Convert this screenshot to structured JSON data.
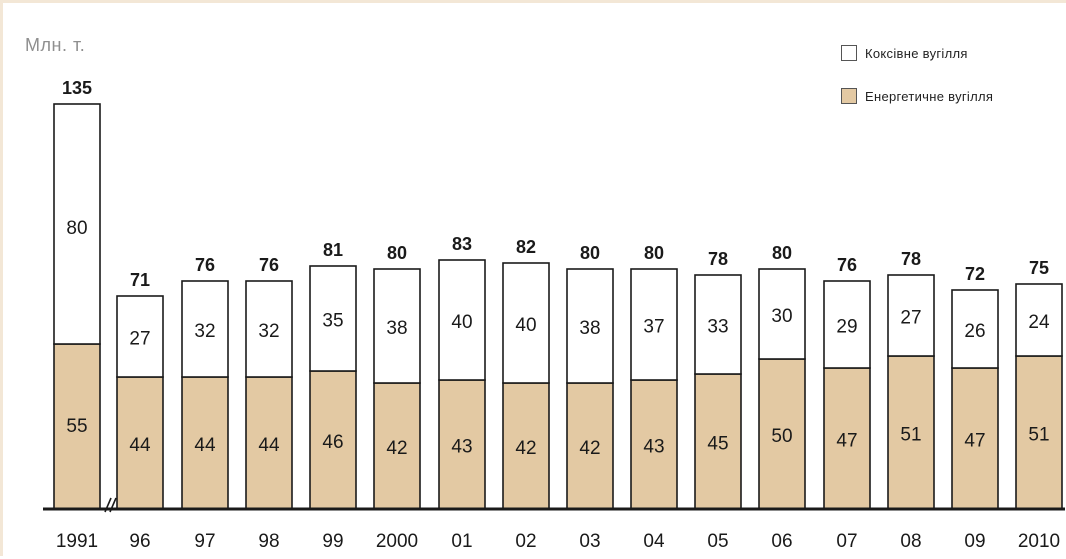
{
  "chart_data": {
    "type": "bar",
    "stacked": true,
    "ylabel": "Млн. т.",
    "categories": [
      "1991",
      "96",
      "97",
      "98",
      "99",
      "2000",
      "01",
      "02",
      "03",
      "04",
      "05",
      "06",
      "07",
      "08",
      "09",
      "2010"
    ],
    "totals": [
      135,
      71,
      76,
      76,
      81,
      80,
      83,
      82,
      80,
      80,
      78,
      80,
      76,
      78,
      72,
      75
    ],
    "series": [
      {
        "name": "Енергетичне вугілля",
        "color": "#e3c9a3",
        "values": [
          55,
          44,
          44,
          44,
          46,
          42,
          43,
          42,
          42,
          43,
          45,
          50,
          47,
          51,
          47,
          51
        ]
      },
      {
        "name": "Коксівне вугілля",
        "color": "#ffffff",
        "values": [
          80,
          27,
          32,
          32,
          35,
          38,
          40,
          40,
          38,
          37,
          33,
          30,
          29,
          27,
          26,
          24
        ]
      }
    ],
    "ylim": [
      0,
      135
    ],
    "axis_break_after": "1991",
    "grid": false,
    "legend_position": "top-right"
  },
  "legend": {
    "coking": "Коксівне вугілля",
    "energy": "Енергетичне вугілля"
  },
  "colors": {
    "energy_fill": "#e3c9a3",
    "coking_fill": "#ffffff",
    "bar_stroke": "#1a1a1a",
    "frame": "#f3e7d6"
  }
}
